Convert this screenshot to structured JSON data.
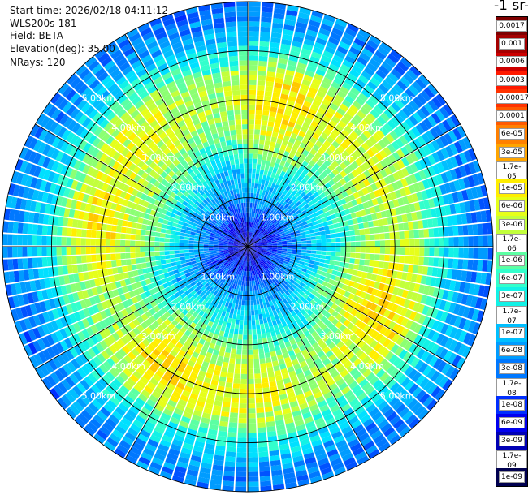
{
  "info": {
    "start_time": "Start time: 2026/02/18 04:11:12",
    "instrument": "WLS200s-181",
    "field": "Field: BETA",
    "elevation": "Elevation(deg): 35.00",
    "nrays": "NRays: 120"
  },
  "colorbar": {
    "title": "-1 sr-",
    "levels": [
      {
        "label": "0.0017",
        "color": "#7f0000"
      },
      {
        "label": "0.001",
        "color": "#a50000"
      },
      {
        "label": "0.0006",
        "color": "#cc0000"
      },
      {
        "label": "0.0003",
        "color": "#ff1a00"
      },
      {
        "label": "0.00017",
        "color": "#ff3300"
      },
      {
        "label": "0.0001",
        "color": "#ff5a00"
      },
      {
        "label": "6e-05",
        "color": "#ff8000"
      },
      {
        "label": "3e-05",
        "color": "#ffa500"
      },
      {
        "label": "1.7e-05",
        "color": "#ffc800"
      },
      {
        "label": "1e-05",
        "color": "#ffee00"
      },
      {
        "label": "6e-06",
        "color": "#e6ff1a"
      },
      {
        "label": "3e-06",
        "color": "#c2ff3c"
      },
      {
        "label": "1.7e-06",
        "color": "#8cff73"
      },
      {
        "label": "1e-06",
        "color": "#5cffa3"
      },
      {
        "label": "6e-07",
        "color": "#33ffcc"
      },
      {
        "label": "3e-07",
        "color": "#12f2e6"
      },
      {
        "label": "1.7e-07",
        "color": "#00e0ff"
      },
      {
        "label": "1e-07",
        "color": "#00bfff"
      },
      {
        "label": "6e-08",
        "color": "#009cff"
      },
      {
        "label": "3e-08",
        "color": "#0078ff"
      },
      {
        "label": "1.7e-08",
        "color": "#0052ff"
      },
      {
        "label": "1e-08",
        "color": "#002eff"
      },
      {
        "label": "6e-09",
        "color": "#0000ee"
      },
      {
        "label": "3e-09",
        "color": "#0000b4"
      },
      {
        "label": "1.7e-09",
        "color": "#00007a"
      },
      {
        "label": "1e-09",
        "color": "#000050"
      }
    ]
  },
  "chart_data": {
    "type": "heatmap",
    "projection": "polar (PPI scan)",
    "nrays": 120,
    "range_rings": [
      {
        "range": 1,
        "label": "1.00km"
      },
      {
        "range": 2,
        "label": "2.00km"
      },
      {
        "range": 3,
        "label": "3.00km"
      },
      {
        "range": 4,
        "label": "4.00km"
      },
      {
        "range": 5,
        "label": "5.00km"
      }
    ],
    "max_range_km": 5.0,
    "spoke_angles_deg": [
      0,
      30,
      60,
      90,
      120,
      150,
      180,
      210,
      240,
      270,
      300,
      330
    ],
    "radial_profile": [
      {
        "range_km": 0.0,
        "level": 23
      },
      {
        "range_km": 0.5,
        "level": 21
      },
      {
        "range_km": 1.0,
        "level": 18
      },
      {
        "range_km": 1.5,
        "level": 16
      },
      {
        "range_km": 2.0,
        "level": 13
      },
      {
        "range_km": 2.5,
        "level": 11
      },
      {
        "range_km": 3.0,
        "level": 10
      },
      {
        "range_km": 3.5,
        "level": 11
      },
      {
        "range_km": 4.0,
        "level": 15
      },
      {
        "range_km": 4.5,
        "level": 18
      },
      {
        "range_km": 5.0,
        "level": 19
      }
    ],
    "colorscale_field": "BETA"
  }
}
